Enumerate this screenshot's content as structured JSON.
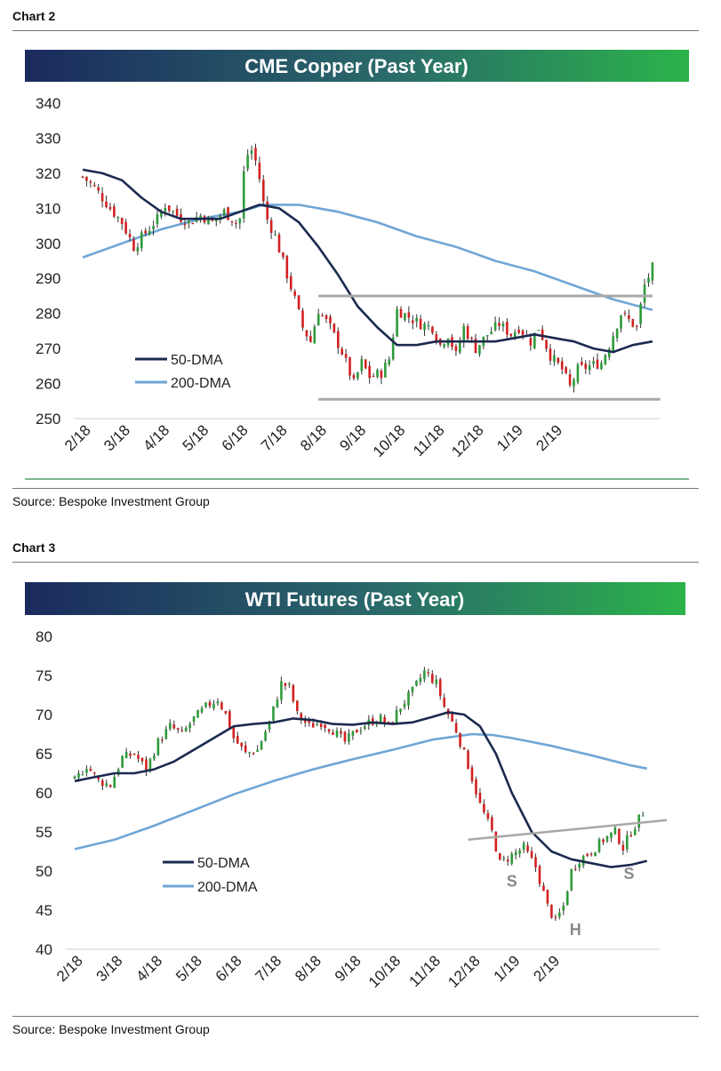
{
  "chart2": {
    "label": "Chart 2",
    "source": "Source: Bespoke Investment Group",
    "colors": {
      "up": "#2e9a3a",
      "down": "#d42020",
      "wick": "#222222",
      "dma50": "#1b2a4f",
      "dma200": "#6fa6d6",
      "support": "#a8a8a8",
      "banner_from": "#1b2a5e",
      "banner_to": "#2bb34a"
    },
    "chart_data": {
      "type": "line",
      "title": "CME Copper (Past Year)",
      "ylim": [
        250,
        340
      ],
      "yticks": [
        "340",
        "330",
        "320",
        "310",
        "300",
        "290",
        "280",
        "270",
        "260",
        "250"
      ],
      "x_tick_labels": [
        "2/18",
        "3/18",
        "4/18",
        "5/18",
        "6/18",
        "7/18",
        "8/18",
        "9/18",
        "10/18",
        "11/18",
        "12/18",
        "1/19",
        "2/19"
      ],
      "legend_placement": "lower-left",
      "price": [
        {
          "m": 0.0,
          "v": 319
        },
        {
          "m": 0.3,
          "v": 316
        },
        {
          "m": 0.7,
          "v": 310
        },
        {
          "m": 1.0,
          "v": 306
        },
        {
          "m": 1.3,
          "v": 299
        },
        {
          "m": 1.6,
          "v": 303
        },
        {
          "m": 1.9,
          "v": 307
        },
        {
          "m": 2.1,
          "v": 311
        },
        {
          "m": 2.4,
          "v": 308
        },
        {
          "m": 2.7,
          "v": 306
        },
        {
          "m": 3.0,
          "v": 308
        },
        {
          "m": 3.3,
          "v": 306
        },
        {
          "m": 3.6,
          "v": 309
        },
        {
          "m": 3.9,
          "v": 306
        },
        {
          "m": 4.0,
          "v": 307
        },
        {
          "m": 4.1,
          "v": 320
        },
        {
          "m": 4.25,
          "v": 328
        },
        {
          "m": 4.45,
          "v": 322
        },
        {
          "m": 4.65,
          "v": 308
        },
        {
          "m": 4.9,
          "v": 302
        },
        {
          "m": 5.2,
          "v": 291
        },
        {
          "m": 5.4,
          "v": 284
        },
        {
          "m": 5.6,
          "v": 276
        },
        {
          "m": 5.8,
          "v": 272
        },
        {
          "m": 6.0,
          "v": 281
        },
        {
          "m": 6.3,
          "v": 276
        },
        {
          "m": 6.6,
          "v": 269
        },
        {
          "m": 6.9,
          "v": 260
        },
        {
          "m": 7.1,
          "v": 266
        },
        {
          "m": 7.3,
          "v": 262
        },
        {
          "m": 7.6,
          "v": 263
        },
        {
          "m": 7.8,
          "v": 267
        },
        {
          "m": 8.0,
          "v": 281
        },
        {
          "m": 8.3,
          "v": 279
        },
        {
          "m": 8.6,
          "v": 277
        },
        {
          "m": 8.9,
          "v": 276
        },
        {
          "m": 9.1,
          "v": 271
        },
        {
          "m": 9.3,
          "v": 274
        },
        {
          "m": 9.5,
          "v": 268
        },
        {
          "m": 9.7,
          "v": 276
        },
        {
          "m": 10.0,
          "v": 270
        },
        {
          "m": 10.3,
          "v": 274
        },
        {
          "m": 10.6,
          "v": 277
        },
        {
          "m": 10.9,
          "v": 274
        },
        {
          "m": 11.1,
          "v": 276
        },
        {
          "m": 11.4,
          "v": 272
        },
        {
          "m": 11.6,
          "v": 276
        },
        {
          "m": 11.9,
          "v": 268
        },
        {
          "m": 12.2,
          "v": 264
        },
        {
          "m": 12.4,
          "v": 259
        },
        {
          "m": 12.6,
          "v": 264
        },
        {
          "m": 12.9,
          "v": 265
        },
        {
          "m": 13.2,
          "v": 266
        },
        {
          "m": 13.4,
          "v": 271
        },
        {
          "m": 13.7,
          "v": 280
        },
        {
          "m": 13.9,
          "v": 278
        },
        {
          "m": 14.1,
          "v": 276
        },
        {
          "m": 14.3,
          "v": 288
        },
        {
          "m": 14.5,
          "v": 293
        }
      ],
      "series": [
        {
          "name": "50-DMA",
          "values": [
            {
              "m": 0.0,
              "v": 321
            },
            {
              "m": 0.5,
              "v": 320
            },
            {
              "m": 1.0,
              "v": 318
            },
            {
              "m": 1.5,
              "v": 313
            },
            {
              "m": 2.0,
              "v": 309
            },
            {
              "m": 2.5,
              "v": 307
            },
            {
              "m": 3.0,
              "v": 307
            },
            {
              "m": 3.5,
              "v": 307
            },
            {
              "m": 4.0,
              "v": 309
            },
            {
              "m": 4.5,
              "v": 311
            },
            {
              "m": 5.0,
              "v": 310
            },
            {
              "m": 5.5,
              "v": 306
            },
            {
              "m": 6.0,
              "v": 299
            },
            {
              "m": 6.5,
              "v": 291
            },
            {
              "m": 7.0,
              "v": 282
            },
            {
              "m": 7.5,
              "v": 276
            },
            {
              "m": 8.0,
              "v": 271
            },
            {
              "m": 8.5,
              "v": 271
            },
            {
              "m": 9.0,
              "v": 272
            },
            {
              "m": 9.5,
              "v": 272
            },
            {
              "m": 10.0,
              "v": 272
            },
            {
              "m": 10.5,
              "v": 272
            },
            {
              "m": 11.0,
              "v": 273
            },
            {
              "m": 11.5,
              "v": 274
            },
            {
              "m": 12.0,
              "v": 273
            },
            {
              "m": 12.5,
              "v": 272
            },
            {
              "m": 13.0,
              "v": 270
            },
            {
              "m": 13.5,
              "v": 269
            },
            {
              "m": 14.0,
              "v": 271
            },
            {
              "m": 14.5,
              "v": 272
            }
          ]
        },
        {
          "name": "200-DMA",
          "values": [
            {
              "m": 0.0,
              "v": 296
            },
            {
              "m": 1.0,
              "v": 300
            },
            {
              "m": 2.0,
              "v": 304
            },
            {
              "m": 3.0,
              "v": 307
            },
            {
              "m": 4.0,
              "v": 309
            },
            {
              "m": 4.6,
              "v": 311
            },
            {
              "m": 5.5,
              "v": 311
            },
            {
              "m": 6.5,
              "v": 309
            },
            {
              "m": 7.5,
              "v": 306
            },
            {
              "m": 8.5,
              "v": 302
            },
            {
              "m": 9.5,
              "v": 299
            },
            {
              "m": 10.5,
              "v": 295
            },
            {
              "m": 11.5,
              "v": 292
            },
            {
              "m": 12.5,
              "v": 288
            },
            {
              "m": 13.5,
              "v": 284
            },
            {
              "m": 14.5,
              "v": 281
            }
          ]
        }
      ],
      "annotations": [
        {
          "type": "hline",
          "v": 285,
          "from_m": 6.0,
          "to_m": 14.5
        },
        {
          "type": "hline",
          "v": 255.5,
          "from_m": 6.0,
          "to_m": 14.7
        }
      ]
    }
  },
  "chart3": {
    "label": "Chart 3",
    "source": "Source: Bespoke Investment Group",
    "chart_data": {
      "type": "line",
      "title": "WTI Futures (Past Year)",
      "ylim": [
        40,
        80
      ],
      "yticks": [
        "80",
        "75",
        "70",
        "65",
        "60",
        "55",
        "50",
        "45",
        "40"
      ],
      "x_tick_labels": [
        "2/18",
        "3/18",
        "4/18",
        "5/18",
        "6/18",
        "7/18",
        "8/18",
        "9/18",
        "10/18",
        "11/18",
        "12/18",
        "1/19",
        "2/19"
      ],
      "legend_placement": "lower-left",
      "price": [
        {
          "m": 0.0,
          "v": 61.5
        },
        {
          "m": 0.3,
          "v": 63.5
        },
        {
          "m": 0.6,
          "v": 61.5
        },
        {
          "m": 0.9,
          "v": 61.0
        },
        {
          "m": 1.2,
          "v": 64.5
        },
        {
          "m": 1.5,
          "v": 65.0
        },
        {
          "m": 1.8,
          "v": 63.0
        },
        {
          "m": 2.1,
          "v": 66.5
        },
        {
          "m": 2.4,
          "v": 68.5
        },
        {
          "m": 2.7,
          "v": 67.5
        },
        {
          "m": 3.0,
          "v": 69.5
        },
        {
          "m": 3.3,
          "v": 71.0
        },
        {
          "m": 3.6,
          "v": 72.0
        },
        {
          "m": 3.8,
          "v": 70.0
        },
        {
          "m": 4.0,
          "v": 67.0
        },
        {
          "m": 4.3,
          "v": 65.0
        },
        {
          "m": 4.6,
          "v": 65.5
        },
        {
          "m": 4.9,
          "v": 69.0
        },
        {
          "m": 5.2,
          "v": 74.0
        },
        {
          "m": 5.4,
          "v": 73.5
        },
        {
          "m": 5.6,
          "v": 70.0
        },
        {
          "m": 5.9,
          "v": 68.5
        },
        {
          "m": 6.2,
          "v": 69.0
        },
        {
          "m": 6.5,
          "v": 68.0
        },
        {
          "m": 6.8,
          "v": 66.5
        },
        {
          "m": 7.1,
          "v": 68.0
        },
        {
          "m": 7.4,
          "v": 69.0
        },
        {
          "m": 7.7,
          "v": 69.5
        },
        {
          "m": 7.9,
          "v": 68.5
        },
        {
          "m": 8.2,
          "v": 71.0
        },
        {
          "m": 8.5,
          "v": 73.0
        },
        {
          "m": 8.8,
          "v": 75.5
        },
        {
          "m": 9.1,
          "v": 74.0
        },
        {
          "m": 9.3,
          "v": 71.0
        },
        {
          "m": 9.6,
          "v": 68.0
        },
        {
          "m": 9.9,
          "v": 63.5
        },
        {
          "m": 10.2,
          "v": 58.5
        },
        {
          "m": 10.5,
          "v": 55.0
        },
        {
          "m": 10.7,
          "v": 51.0
        },
        {
          "m": 11.0,
          "v": 52.0
        },
        {
          "m": 11.3,
          "v": 53.0
        },
        {
          "m": 11.6,
          "v": 50.5
        },
        {
          "m": 11.9,
          "v": 45.5
        },
        {
          "m": 12.1,
          "v": 43.5
        },
        {
          "m": 12.3,
          "v": 45.5
        },
        {
          "m": 12.5,
          "v": 50.0
        },
        {
          "m": 12.7,
          "v": 51.5
        },
        {
          "m": 13.0,
          "v": 52.5
        },
        {
          "m": 13.3,
          "v": 54.0
        },
        {
          "m": 13.6,
          "v": 55.0
        },
        {
          "m": 13.8,
          "v": 53.0
        },
        {
          "m": 14.0,
          "v": 55.0
        },
        {
          "m": 14.3,
          "v": 57.5
        }
      ],
      "series": [
        {
          "name": "50-DMA",
          "values": [
            {
              "m": 0.0,
              "v": 61.5
            },
            {
              "m": 0.5,
              "v": 62.0
            },
            {
              "m": 1.0,
              "v": 62.5
            },
            {
              "m": 1.5,
              "v": 62.5
            },
            {
              "m": 2.0,
              "v": 63.0
            },
            {
              "m": 2.5,
              "v": 64.0
            },
            {
              "m": 3.0,
              "v": 65.5
            },
            {
              "m": 3.5,
              "v": 67.0
            },
            {
              "m": 4.0,
              "v": 68.5
            },
            {
              "m": 4.5,
              "v": 68.8
            },
            {
              "m": 5.0,
              "v": 69.0
            },
            {
              "m": 5.5,
              "v": 69.5
            },
            {
              "m": 6.0,
              "v": 69.3
            },
            {
              "m": 6.5,
              "v": 68.8
            },
            {
              "m": 7.0,
              "v": 68.7
            },
            {
              "m": 7.5,
              "v": 69.0
            },
            {
              "m": 8.0,
              "v": 68.8
            },
            {
              "m": 8.5,
              "v": 69.0
            },
            {
              "m": 9.0,
              "v": 69.7
            },
            {
              "m": 9.4,
              "v": 70.3
            },
            {
              "m": 9.8,
              "v": 70.0
            },
            {
              "m": 10.2,
              "v": 68.5
            },
            {
              "m": 10.6,
              "v": 65.0
            },
            {
              "m": 11.0,
              "v": 60.0
            },
            {
              "m": 11.5,
              "v": 55.0
            },
            {
              "m": 12.0,
              "v": 52.5
            },
            {
              "m": 12.5,
              "v": 51.5
            },
            {
              "m": 13.0,
              "v": 51.0
            },
            {
              "m": 13.5,
              "v": 50.5
            },
            {
              "m": 14.0,
              "v": 50.8
            },
            {
              "m": 14.4,
              "v": 51.3
            }
          ]
        },
        {
          "name": "200-DMA",
          "values": [
            {
              "m": 0.0,
              "v": 52.8
            },
            {
              "m": 1.0,
              "v": 54.0
            },
            {
              "m": 2.0,
              "v": 55.8
            },
            {
              "m": 3.0,
              "v": 57.8
            },
            {
              "m": 4.0,
              "v": 59.8
            },
            {
              "m": 5.0,
              "v": 61.5
            },
            {
              "m": 6.0,
              "v": 63.0
            },
            {
              "m": 7.0,
              "v": 64.3
            },
            {
              "m": 8.0,
              "v": 65.5
            },
            {
              "m": 9.0,
              "v": 66.8
            },
            {
              "m": 10.0,
              "v": 67.5
            },
            {
              "m": 10.5,
              "v": 67.4
            },
            {
              "m": 11.0,
              "v": 67.0
            },
            {
              "m": 12.0,
              "v": 66.0
            },
            {
              "m": 13.0,
              "v": 64.8
            },
            {
              "m": 14.0,
              "v": 63.5
            },
            {
              "m": 14.4,
              "v": 63.1
            }
          ]
        }
      ],
      "annotations": [
        {
          "type": "trendline",
          "from": {
            "m": 9.9,
            "v": 54.0
          },
          "to": {
            "m": 14.9,
            "v": 56.5
          }
        },
        {
          "type": "text",
          "text": "S",
          "m": 11.0,
          "v": 48.0
        },
        {
          "type": "text",
          "text": "H",
          "m": 12.6,
          "v": 41.8
        },
        {
          "type": "text",
          "text": "S",
          "m": 13.95,
          "v": 49.0
        }
      ]
    }
  }
}
